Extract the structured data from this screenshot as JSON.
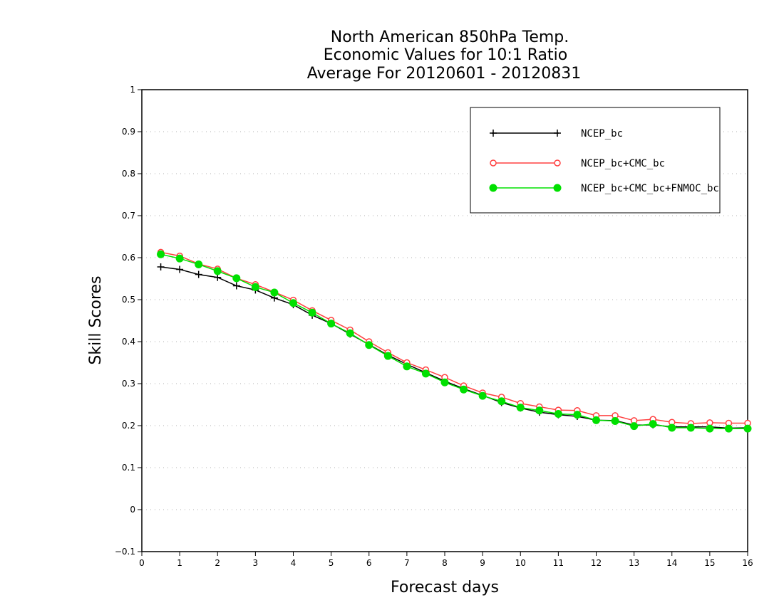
{
  "chart_data": {
    "type": "line",
    "title": [
      "North American 850hPa Temp.",
      "Economic Values for 10:1 Ratio",
      "Average For 20120601 - 20120831"
    ],
    "xlabel": "Forecast days",
    "ylabel": "Skill Scores",
    "xlim": [
      0,
      16
    ],
    "ylim": [
      -0.1,
      1
    ],
    "xticks": [
      "0",
      "1",
      "2",
      "3",
      "4",
      "5",
      "6",
      "7",
      "8",
      "9",
      "10",
      "11",
      "12",
      "13",
      "14",
      "15",
      "16"
    ],
    "yticks": [
      "−0.1",
      "0",
      "0.1",
      "0.2",
      "0.3",
      "0.4",
      "0.5",
      "0.6",
      "0.7",
      "0.8",
      "0.9",
      "1"
    ],
    "grid": true,
    "legend_position": "top-right",
    "x": [
      0.5,
      1,
      1.5,
      2,
      2.5,
      3,
      3.5,
      4,
      4.5,
      5,
      5.5,
      6,
      6.5,
      7,
      7.5,
      8,
      8.5,
      9,
      9.5,
      10,
      10.5,
      11,
      11.5,
      12,
      12.5,
      13,
      13.5,
      14,
      14.5,
      15,
      15.5,
      16
    ],
    "series": [
      {
        "name": "NCEP_bc",
        "color": "#000000",
        "marker": "plus",
        "values": [
          0.578,
          0.572,
          0.56,
          0.553,
          0.533,
          0.523,
          0.504,
          0.488,
          0.463,
          0.443,
          0.418,
          0.393,
          0.368,
          0.346,
          0.326,
          0.306,
          0.288,
          0.272,
          0.255,
          0.242,
          0.232,
          0.226,
          0.222,
          0.213,
          0.212,
          0.201,
          0.202,
          0.197,
          0.197,
          0.197,
          0.194,
          0.195
        ]
      },
      {
        "name": "NCEP_bc+CMC_bc",
        "color": "#ff4040",
        "marker": "open-circle",
        "values": [
          0.613,
          0.604,
          0.585,
          0.573,
          0.551,
          0.536,
          0.518,
          0.499,
          0.474,
          0.451,
          0.428,
          0.4,
          0.374,
          0.35,
          0.333,
          0.315,
          0.295,
          0.278,
          0.268,
          0.253,
          0.245,
          0.237,
          0.236,
          0.224,
          0.224,
          0.212,
          0.215,
          0.208,
          0.205,
          0.207,
          0.206,
          0.206
        ]
      },
      {
        "name": "NCEP_bc+CMC_bc+FNMOC_bc",
        "color": "#00e000",
        "marker": "filled-circle",
        "values": [
          0.608,
          0.598,
          0.584,
          0.568,
          0.551,
          0.53,
          0.517,
          0.492,
          0.469,
          0.443,
          0.42,
          0.392,
          0.366,
          0.341,
          0.324,
          0.303,
          0.286,
          0.271,
          0.258,
          0.243,
          0.236,
          0.228,
          0.226,
          0.213,
          0.211,
          0.199,
          0.204,
          0.195,
          0.195,
          0.193,
          0.193,
          0.193
        ]
      }
    ]
  }
}
